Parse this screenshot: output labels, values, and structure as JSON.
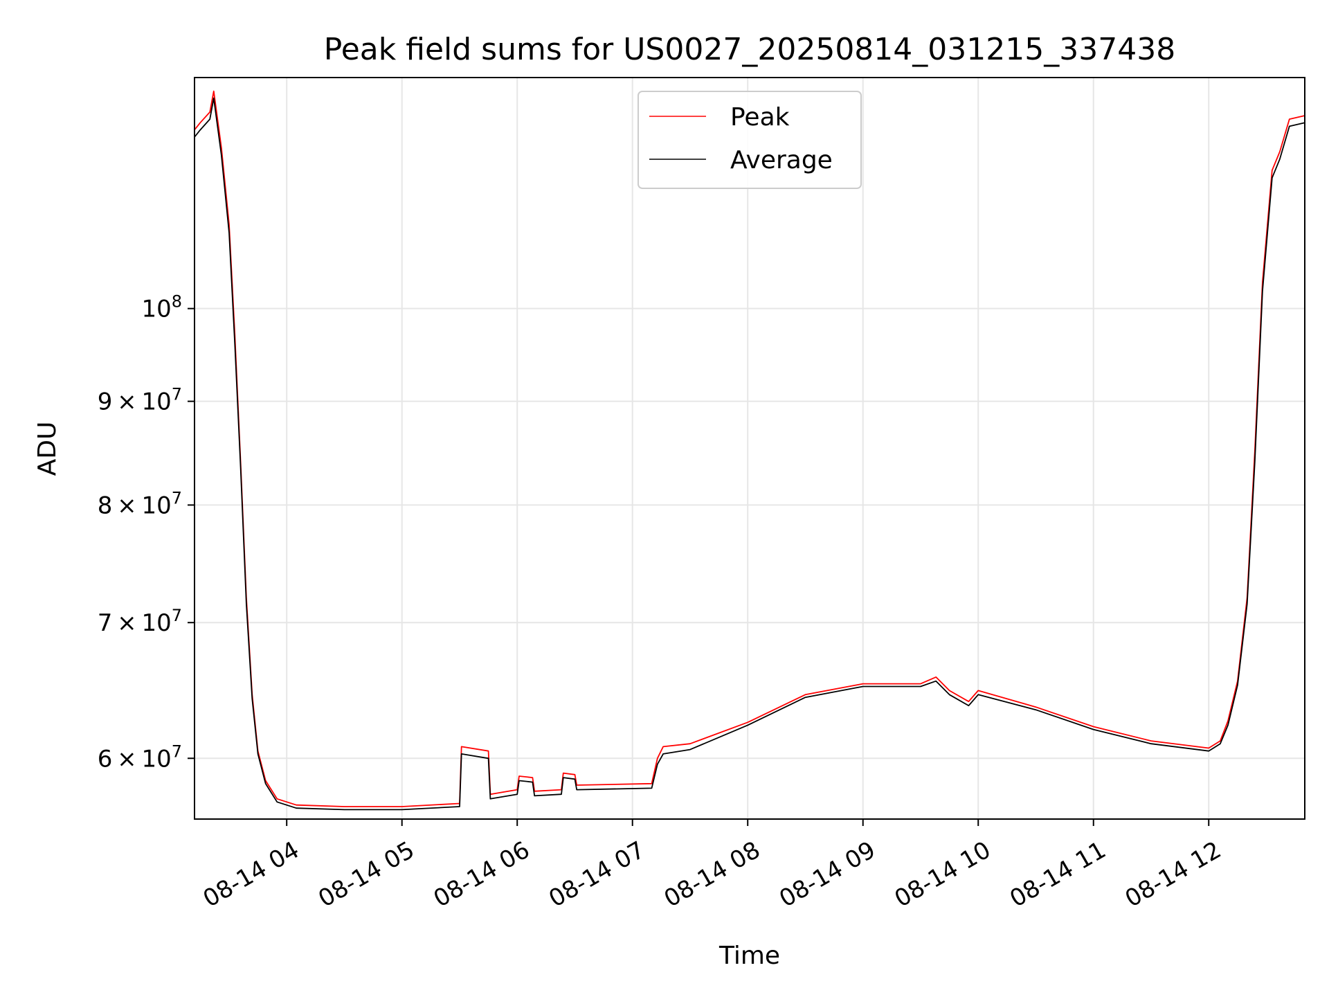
{
  "chart_data": {
    "type": "line",
    "title": "Peak field sums for US0027_20250814_031215_337438",
    "xlabel": "Time",
    "ylabel": "ADU",
    "yscale": "log",
    "grid": true,
    "legend_position": "top-center",
    "xlim": [
      "08-14 03:12",
      "08-14 12:50"
    ],
    "ylim": [
      56000000,
      130000000
    ],
    "x_ticks": [
      "08-14 04",
      "08-14 05",
      "08-14 06",
      "08-14 07",
      "08-14 08",
      "08-14 09",
      "08-14 10",
      "08-14 11",
      "08-14 12"
    ],
    "y_ticks": [
      {
        "value": 60000000,
        "mantissa": "6",
        "exp": "7"
      },
      {
        "value": 70000000,
        "mantissa": "7",
        "exp": "7"
      },
      {
        "value": 80000000,
        "mantissa": "8",
        "exp": "7"
      },
      {
        "value": 90000000,
        "mantissa": "9",
        "exp": "7"
      },
      {
        "value": 100000000,
        "mantissa": "",
        "exp": "8"
      }
    ],
    "series": [
      {
        "name": "Peak",
        "color": "#ff0000",
        "points": [
          [
            "08-14 03:12",
            122500000
          ],
          [
            "08-14 03:15",
            123500000
          ],
          [
            "08-14 03:20",
            125000000
          ],
          [
            "08-14 03:22",
            128000000
          ],
          [
            "08-14 03:26",
            120000000
          ],
          [
            "08-14 03:30",
            110000000
          ],
          [
            "08-14 03:33",
            97000000
          ],
          [
            "08-14 03:36",
            84000000
          ],
          [
            "08-14 03:39",
            72000000
          ],
          [
            "08-14 03:42",
            64500000
          ],
          [
            "08-14 03:45",
            60500000
          ],
          [
            "08-14 03:49",
            58500000
          ],
          [
            "08-14 03:55",
            57300000
          ],
          [
            "08-14 04:05",
            56900000
          ],
          [
            "08-14 04:30",
            56800000
          ],
          [
            "08-14 05:00",
            56800000
          ],
          [
            "08-14 05:30",
            57000000
          ],
          [
            "08-14 05:31",
            60800000
          ],
          [
            "08-14 05:45",
            60500000
          ],
          [
            "08-14 05:46",
            57600000
          ],
          [
            "08-14 06:00",
            57900000
          ],
          [
            "08-14 06:01",
            58800000
          ],
          [
            "08-14 06:08",
            58700000
          ],
          [
            "08-14 06:09",
            57800000
          ],
          [
            "08-14 06:23",
            57900000
          ],
          [
            "08-14 06:24",
            59000000
          ],
          [
            "08-14 06:30",
            58900000
          ],
          [
            "08-14 06:31",
            58200000
          ],
          [
            "08-14 07:10",
            58300000
          ],
          [
            "08-14 07:13",
            60000000
          ],
          [
            "08-14 07:16",
            60800000
          ],
          [
            "08-14 07:30",
            61000000
          ],
          [
            "08-14 08:00",
            62500000
          ],
          [
            "08-14 08:30",
            64500000
          ],
          [
            "08-14 09:00",
            65300000
          ],
          [
            "08-14 09:30",
            65300000
          ],
          [
            "08-14 09:38",
            65800000
          ],
          [
            "08-14 09:45",
            64800000
          ],
          [
            "08-14 09:55",
            64000000
          ],
          [
            "08-14 10:00",
            64800000
          ],
          [
            "08-14 10:30",
            63600000
          ],
          [
            "08-14 11:00",
            62200000
          ],
          [
            "08-14 11:30",
            61200000
          ],
          [
            "08-14 12:00",
            60700000
          ],
          [
            "08-14 12:06",
            61200000
          ],
          [
            "08-14 12:10",
            62600000
          ],
          [
            "08-14 12:15",
            65500000
          ],
          [
            "08-14 12:20",
            72000000
          ],
          [
            "08-14 12:24",
            85000000
          ],
          [
            "08-14 12:28",
            103000000
          ],
          [
            "08-14 12:33",
            117000000
          ],
          [
            "08-14 12:37",
            119500000
          ],
          [
            "08-14 12:42",
            124000000
          ],
          [
            "08-14 12:50",
            124500000
          ]
        ]
      },
      {
        "name": "Average",
        "color": "#000000",
        "points": [
          [
            "08-14 03:12",
            121500000
          ],
          [
            "08-14 03:15",
            122500000
          ],
          [
            "08-14 03:20",
            124000000
          ],
          [
            "08-14 03:22",
            127000000
          ],
          [
            "08-14 03:26",
            119000000
          ],
          [
            "08-14 03:30",
            109000000
          ],
          [
            "08-14 03:33",
            96000000
          ],
          [
            "08-14 03:36",
            83500000
          ],
          [
            "08-14 03:39",
            71500000
          ],
          [
            "08-14 03:42",
            64200000
          ],
          [
            "08-14 03:45",
            60300000
          ],
          [
            "08-14 03:49",
            58300000
          ],
          [
            "08-14 03:55",
            57100000
          ],
          [
            "08-14 04:05",
            56700000
          ],
          [
            "08-14 04:30",
            56600000
          ],
          [
            "08-14 05:00",
            56600000
          ],
          [
            "08-14 05:30",
            56800000
          ],
          [
            "08-14 05:31",
            60300000
          ],
          [
            "08-14 05:45",
            60000000
          ],
          [
            "08-14 05:46",
            57300000
          ],
          [
            "08-14 06:00",
            57600000
          ],
          [
            "08-14 06:01",
            58500000
          ],
          [
            "08-14 06:08",
            58400000
          ],
          [
            "08-14 06:09",
            57500000
          ],
          [
            "08-14 06:23",
            57600000
          ],
          [
            "08-14 06:24",
            58700000
          ],
          [
            "08-14 06:30",
            58600000
          ],
          [
            "08-14 06:31",
            57900000
          ],
          [
            "08-14 07:10",
            58000000
          ],
          [
            "08-14 07:13",
            59600000
          ],
          [
            "08-14 07:16",
            60300000
          ],
          [
            "08-14 07:30",
            60600000
          ],
          [
            "08-14 08:00",
            62300000
          ],
          [
            "08-14 08:30",
            64300000
          ],
          [
            "08-14 09:00",
            65100000
          ],
          [
            "08-14 09:30",
            65100000
          ],
          [
            "08-14 09:38",
            65500000
          ],
          [
            "08-14 09:45",
            64500000
          ],
          [
            "08-14 09:55",
            63700000
          ],
          [
            "08-14 10:00",
            64500000
          ],
          [
            "08-14 10:30",
            63400000
          ],
          [
            "08-14 11:00",
            62000000
          ],
          [
            "08-14 11:30",
            61000000
          ],
          [
            "08-14 12:00",
            60500000
          ],
          [
            "08-14 12:06",
            61000000
          ],
          [
            "08-14 12:10",
            62300000
          ],
          [
            "08-14 12:15",
            65200000
          ],
          [
            "08-14 12:20",
            71500000
          ],
          [
            "08-14 12:24",
            84000000
          ],
          [
            "08-14 12:28",
            102000000
          ],
          [
            "08-14 12:33",
            116000000
          ],
          [
            "08-14 12:37",
            118500000
          ],
          [
            "08-14 12:42",
            123000000
          ],
          [
            "08-14 12:50",
            123500000
          ]
        ]
      }
    ]
  }
}
